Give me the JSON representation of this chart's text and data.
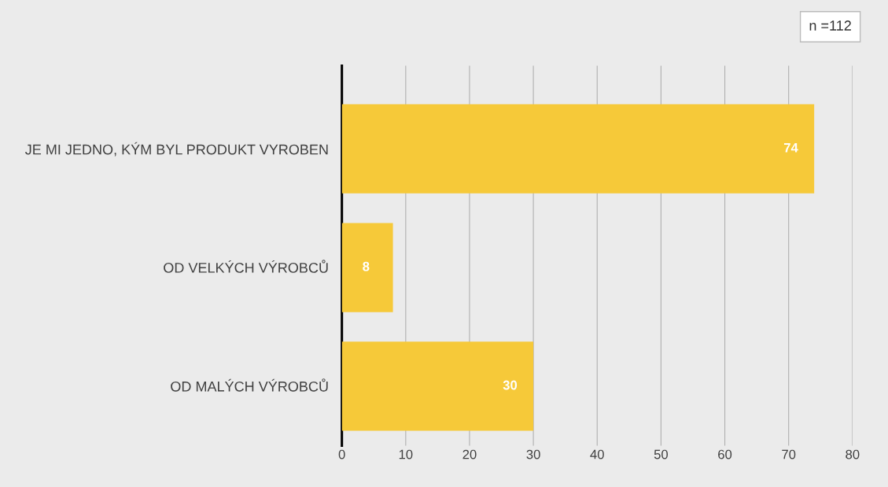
{
  "chart_data": {
    "type": "bar",
    "orientation": "horizontal",
    "categories": [
      "JE MI JEDNO, KÝM BYL PRODUKT VYROBEN",
      "OD VELKÝCH VÝROBCŮ",
      "OD MALÝCH VÝROBCŮ"
    ],
    "values": [
      74,
      8,
      30
    ],
    "color": "#f6c939",
    "xlim": [
      0,
      80
    ],
    "xticks": [
      0,
      10,
      20,
      30,
      40,
      50,
      60,
      70,
      80
    ],
    "grid": "x",
    "data_labels": true,
    "annotations": [
      "n =112"
    ]
  }
}
